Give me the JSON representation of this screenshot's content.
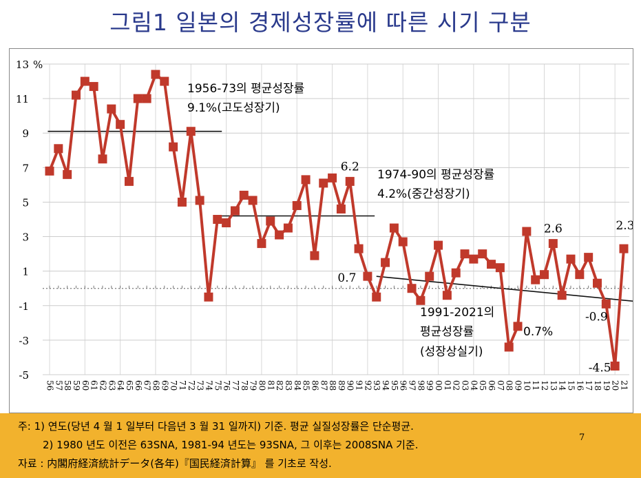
{
  "page_title": "그림1 일본의 경제성장률에 따른 시기 구분",
  "chart_data": {
    "type": "line",
    "title": "",
    "xlabel": "",
    "ylabel": "%",
    "ylim": [
      -5,
      13
    ],
    "yticks": [
      -5,
      -3,
      -1,
      1,
      3,
      5,
      7,
      9,
      11,
      13
    ],
    "grid": true,
    "categories": [
      "56",
      "57",
      "58",
      "59",
      "60",
      "61",
      "62",
      "63",
      "64",
      "65",
      "66",
      "67",
      "68",
      "69",
      "70",
      "71",
      "72",
      "73",
      "74",
      "75",
      "76",
      "77",
      "78",
      "79",
      "80",
      "81",
      "82",
      "83",
      "84",
      "85",
      "86",
      "87",
      "88",
      "89",
      "90",
      "91",
      "92",
      "93",
      "94",
      "95",
      "96",
      "97",
      "98",
      "99",
      "00",
      "01",
      "02",
      "03",
      "04",
      "05",
      "06",
      "07",
      "08",
      "09",
      "10",
      "11",
      "12",
      "13",
      "14",
      "15",
      "16",
      "17",
      "18",
      "19",
      "20",
      "21"
    ],
    "series": [
      {
        "name": "",
        "color": "#c0392b",
        "values": [
          6.8,
          8.1,
          6.6,
          11.2,
          12.0,
          11.7,
          7.5,
          10.4,
          9.5,
          6.2,
          11.0,
          11.0,
          12.4,
          12.0,
          8.2,
          5.0,
          9.1,
          5.1,
          -0.5,
          4.0,
          3.8,
          4.5,
          5.4,
          5.1,
          2.6,
          3.9,
          3.1,
          3.5,
          4.8,
          6.3,
          1.9,
          6.1,
          6.4,
          4.6,
          6.2,
          2.3,
          0.7,
          -0.5,
          1.5,
          3.5,
          2.7,
          0.0,
          -0.7,
          0.7,
          2.5,
          -0.4,
          0.9,
          2.0,
          1.7,
          2.0,
          1.4,
          1.2,
          -3.4,
          -2.2,
          3.3,
          0.5,
          0.8,
          2.6,
          -0.4,
          1.7,
          0.8,
          1.8,
          0.3,
          -0.9,
          -4.5,
          2.3
        ]
      }
    ],
    "period_averages": [
      {
        "label_line1": "1956-73의 평균성장률",
        "label_line2": "9.1%(고도성장기)",
        "value": 9.1
      },
      {
        "label_line1": "1974-90의 평균성장률",
        "label_line2": "4.2%(중간성장기)",
        "value": 4.2
      },
      {
        "label_line1": "1991-2021의",
        "label_line2": "평균성장률",
        "label_value": "0.7%",
        "label_line3": "(성장상실기)",
        "value": 0.7
      }
    ],
    "data_labels": [
      {
        "text": "6.2",
        "index": 34
      },
      {
        "text": "0.7",
        "index": 36
      },
      {
        "text": "2.6",
        "index": 57
      },
      {
        "text": "-0.9",
        "index": 63
      },
      {
        "text": "-4.5",
        "index": 64
      },
      {
        "text": "2.3",
        "index": 65
      }
    ]
  },
  "footer": {
    "note1": "주: 1) 연도(당년 4 월 1 일부터 다음년 3 월 31 일까지) 기준. 평균 실질성장률은 단순평균.",
    "note2": "2) 1980 년도 이전은 63SNA, 1981-94 년도는 93SNA, 그 이후는 2008SNA 기준.",
    "source": "자료 : 内閣府経済統計データ(各年)『国民経済計算』 를 기초로 작성.",
    "page_number": "7"
  }
}
